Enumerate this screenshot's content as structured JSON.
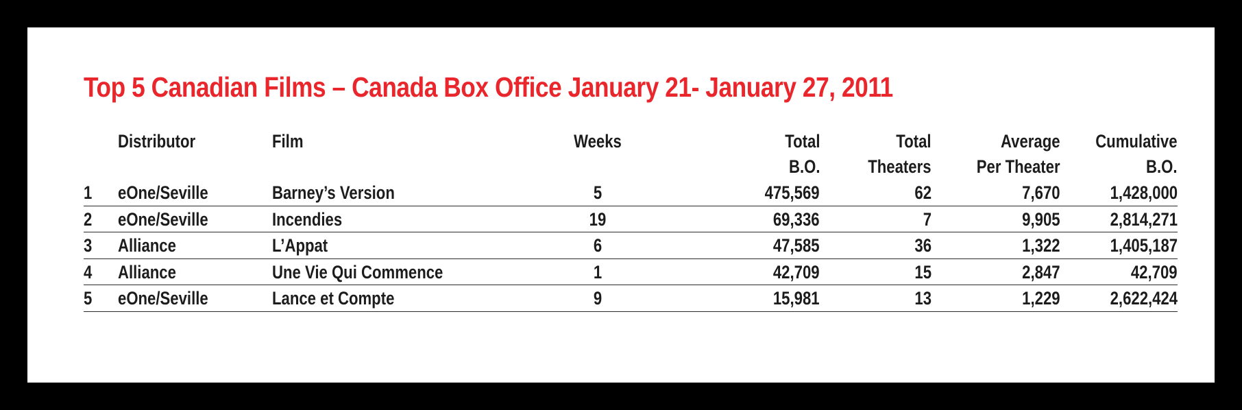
{
  "title": "Top 5 Canadian Films –  Canada Box Office January 21- January 27, 2011",
  "headers": {
    "distributor": "Distributor",
    "film": "Film",
    "weeks": "Weeks",
    "total_bo_1": "Total",
    "total_bo_2": "B.O.",
    "total_theaters_1": "Total",
    "total_theaters_2": "Theaters",
    "average_1": "Average",
    "average_2": "Per Theater",
    "cumulative_1": "Cumulative",
    "cumulative_2": "B.O."
  },
  "rows": [
    {
      "rank": "1",
      "distributor": "eOne/Seville",
      "film": "Barney’s Version",
      "weeks": "5",
      "total_bo": "475,569",
      "total_theaters": "62",
      "average": "7,670",
      "cumulative": "1,428,000"
    },
    {
      "rank": "2",
      "distributor": "eOne/Seville",
      "film": "Incendies",
      "weeks": "19",
      "total_bo": "69,336",
      "total_theaters": "7",
      "average": "9,905",
      "cumulative": "2,814,271"
    },
    {
      "rank": "3",
      "distributor": "Alliance",
      "film": "L’Appat",
      "weeks": "6",
      "total_bo": "47,585",
      "total_theaters": "36",
      "average": "1,322",
      "cumulative": "1,405,187"
    },
    {
      "rank": "4",
      "distributor": "Alliance",
      "film": "Une Vie Qui Commence",
      "weeks": "1",
      "total_bo": "42,709",
      "total_theaters": "15",
      "average": "2,847",
      "cumulative": "42,709"
    },
    {
      "rank": "5",
      "distributor": "eOne/Seville",
      "film": "Lance et Compte",
      "weeks": "9",
      "total_bo": "15,981",
      "total_theaters": "13",
      "average": "1,229",
      "cumulative": "2,622,424"
    }
  ],
  "colors": {
    "title": "#e8262b",
    "text": "#1c1c1c",
    "background": "#ffffff",
    "border": "#000000"
  }
}
